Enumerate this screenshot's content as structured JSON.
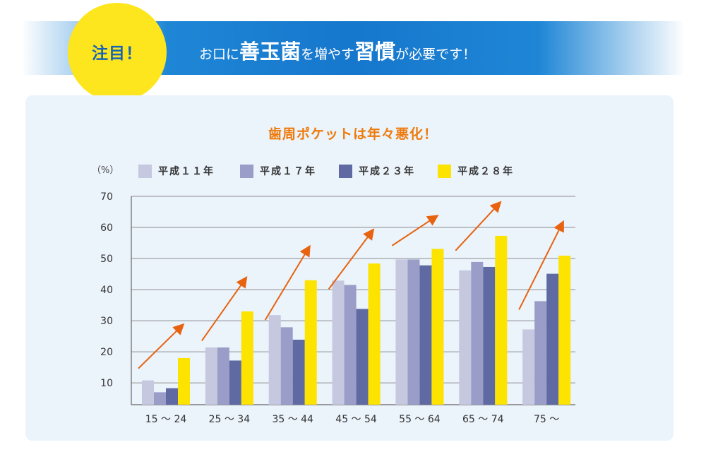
{
  "badge_text": "注目！",
  "banner": {
    "parts": [
      {
        "text": "お口に",
        "style": "s"
      },
      {
        "text": "善玉菌",
        "style": "b"
      },
      {
        "text": "を増やす",
        "style": "s"
      },
      {
        "text": "習慣",
        "style": "b"
      },
      {
        "text": "が必要です！",
        "style": "s"
      }
    ]
  },
  "colors": {
    "banner": "#1677cc",
    "badge": "#fde61d",
    "badge_text": "#1763b5",
    "title": "#ee7b0c",
    "arrow": "#e8620f",
    "panel": "#ebf3fb"
  },
  "chart_data": {
    "type": "bar",
    "title": "歯周ポケットは年々悪化！",
    "unit_label": "（%）",
    "categories": [
      "15 ～ 24",
      "25 ～ 34",
      "35 ～ 44",
      "45 ～ 54",
      "55 ～ 64",
      "65 ～ 74",
      "75 ～"
    ],
    "series": [
      {
        "name": "平成１１年",
        "color": "#c6c8e0",
        "values": [
          10.8,
          21.4,
          31.8,
          42.9,
          49.7,
          46.2,
          27.2
        ]
      },
      {
        "name": "平成１７年",
        "color": "#9a9dc7",
        "values": [
          7.0,
          21.4,
          27.9,
          41.5,
          49.7,
          48.9,
          36.3
        ]
      },
      {
        "name": "平成２３年",
        "color": "#5f6aa3",
        "values": [
          8.3,
          17.2,
          23.9,
          33.8,
          47.8,
          47.3,
          45.1
        ]
      },
      {
        "name": "平成２８年",
        "color": "#fce300",
        "values": [
          18.0,
          33.0,
          43.0,
          48.4,
          53.1,
          57.3,
          50.9
        ]
      }
    ],
    "yticks": [
      10,
      20,
      30,
      40,
      50,
      60,
      70
    ],
    "ylim": [
      3,
      70
    ],
    "grid": true,
    "legend_position": "top-left",
    "trend_arrows": true
  }
}
